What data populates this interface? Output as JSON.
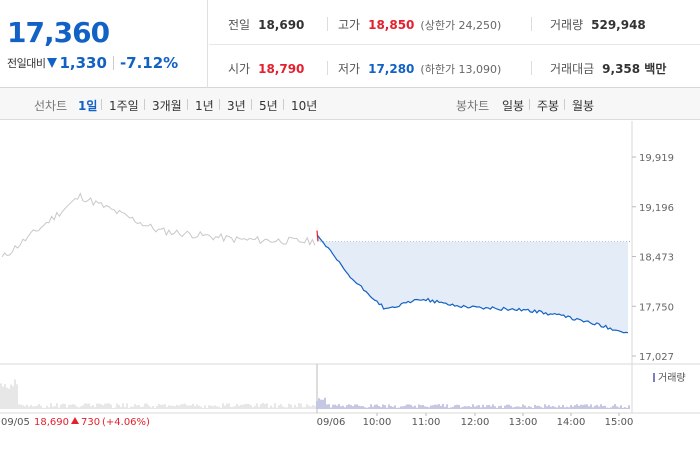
{
  "price": {
    "current": "17,360",
    "change_label": "전일대비",
    "change": "1,330",
    "change_pct": "-7.12%"
  },
  "stats": {
    "prev": {
      "label": "전일",
      "value": "18,690"
    },
    "high": {
      "label": "고가",
      "value": "18,850",
      "sub": "(상한가 24,250)"
    },
    "volume": {
      "label": "거래량",
      "value": "529,948"
    },
    "open": {
      "label": "시가",
      "value": "18,790"
    },
    "low": {
      "label": "저가",
      "value": "17,280",
      "sub": "(하한가 13,090)"
    },
    "amount": {
      "label": "거래대금",
      "value": "9,358 백만"
    }
  },
  "period_bar": {
    "line_label": "선차트",
    "line_periods": [
      "1일",
      "1주일",
      "3개월",
      "1년",
      "3년",
      "5년",
      "10년"
    ],
    "active": "1일",
    "candle_label": "봉차트",
    "candle_periods": [
      "일봉",
      "주봉",
      "월봉"
    ]
  },
  "chart": {
    "y_ticks": [
      "19,919",
      "19,196",
      "18,473",
      "17,750",
      "17,027"
    ],
    "volume_legend": "거래량",
    "prev_day": {
      "date": "09/05",
      "close": "18,690",
      "change": "730",
      "change_pct": "(+4.06%)"
    },
    "x_labels": [
      "09/06",
      "10:00",
      "11:00",
      "12:00",
      "13:00",
      "14:00",
      "15:00"
    ]
  },
  "colors": {
    "up": "#e5202e",
    "down": "#1261c4",
    "fill": "#e4ecf8",
    "prev_line": "#c8c8c8"
  },
  "chart_data": {
    "type": "line",
    "y_range": [
      17027,
      19919
    ],
    "baseline": 18690,
    "series": [
      {
        "name": "09/05",
        "x": [
          "09/05 09:00",
          "09/05 10:30",
          "09/05 12:00",
          "09/05 13:30",
          "09/05 15:30"
        ],
        "values": [
          18450,
          19350,
          18850,
          18720,
          18690
        ]
      },
      {
        "name": "09/06",
        "x": [
          "09:00",
          "09:30",
          "10:00",
          "10:30",
          "11:00",
          "12:00",
          "13:00",
          "14:00",
          "15:00",
          "15:30"
        ],
        "values": [
          18790,
          18150,
          17700,
          17860,
          17760,
          17720,
          17700,
          17620,
          17500,
          17360
        ]
      }
    ]
  }
}
